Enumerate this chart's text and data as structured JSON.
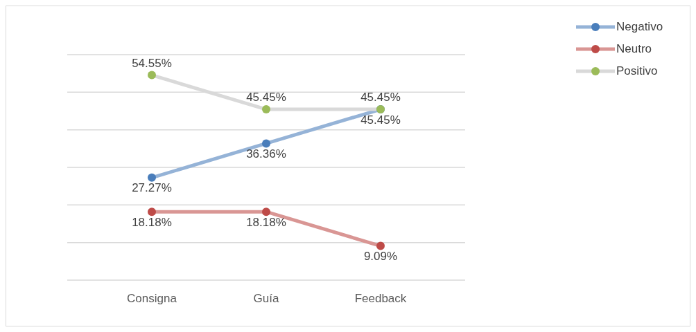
{
  "chart_data": {
    "type": "line",
    "categories": [
      "Consigna",
      "Guía",
      "Feedback"
    ],
    "series": [
      {
        "name": "Negativo",
        "color": "#95b3d7",
        "colors": [
          "#4a7ebb",
          "#4a7ebb",
          "#4a7ebb"
        ],
        "values": [
          27.27,
          36.36,
          45.45
        ],
        "value_labels": [
          "27.27%",
          "36.36%",
          "45.45%"
        ]
      },
      {
        "name": "Neutro",
        "color": "#d99694",
        "colors": [
          "#be4b48",
          "#be4b48",
          "#be4b48"
        ],
        "values": [
          18.18,
          18.18,
          9.09
        ],
        "value_labels": [
          "18.18%",
          "18.18%",
          "9.09%"
        ]
      },
      {
        "name": "Positivo",
        "color": "#d9d9d9",
        "colors": [
          "#9bbb59",
          "#9bbb59",
          "#9bbb59"
        ],
        "values": [
          54.55,
          45.45,
          45.45
        ],
        "value_labels": [
          "54.55%",
          "45.45%",
          "45.45%"
        ]
      }
    ],
    "ylim": [
      0,
      60
    ],
    "yticks": [
      {
        "value": 0,
        "label": null
      },
      {
        "value": 10,
        "label": null
      },
      {
        "value": 20,
        "label": null
      },
      {
        "value": 30,
        "label": null
      },
      {
        "value": 40,
        "label": null
      },
      {
        "value": 50,
        "label": null
      },
      {
        "value": 60,
        "label": null
      }
    ],
    "tick_labels": "x",
    "grid": "y",
    "legend": "top right",
    "marker": "circle",
    "line_style": "solid"
  }
}
